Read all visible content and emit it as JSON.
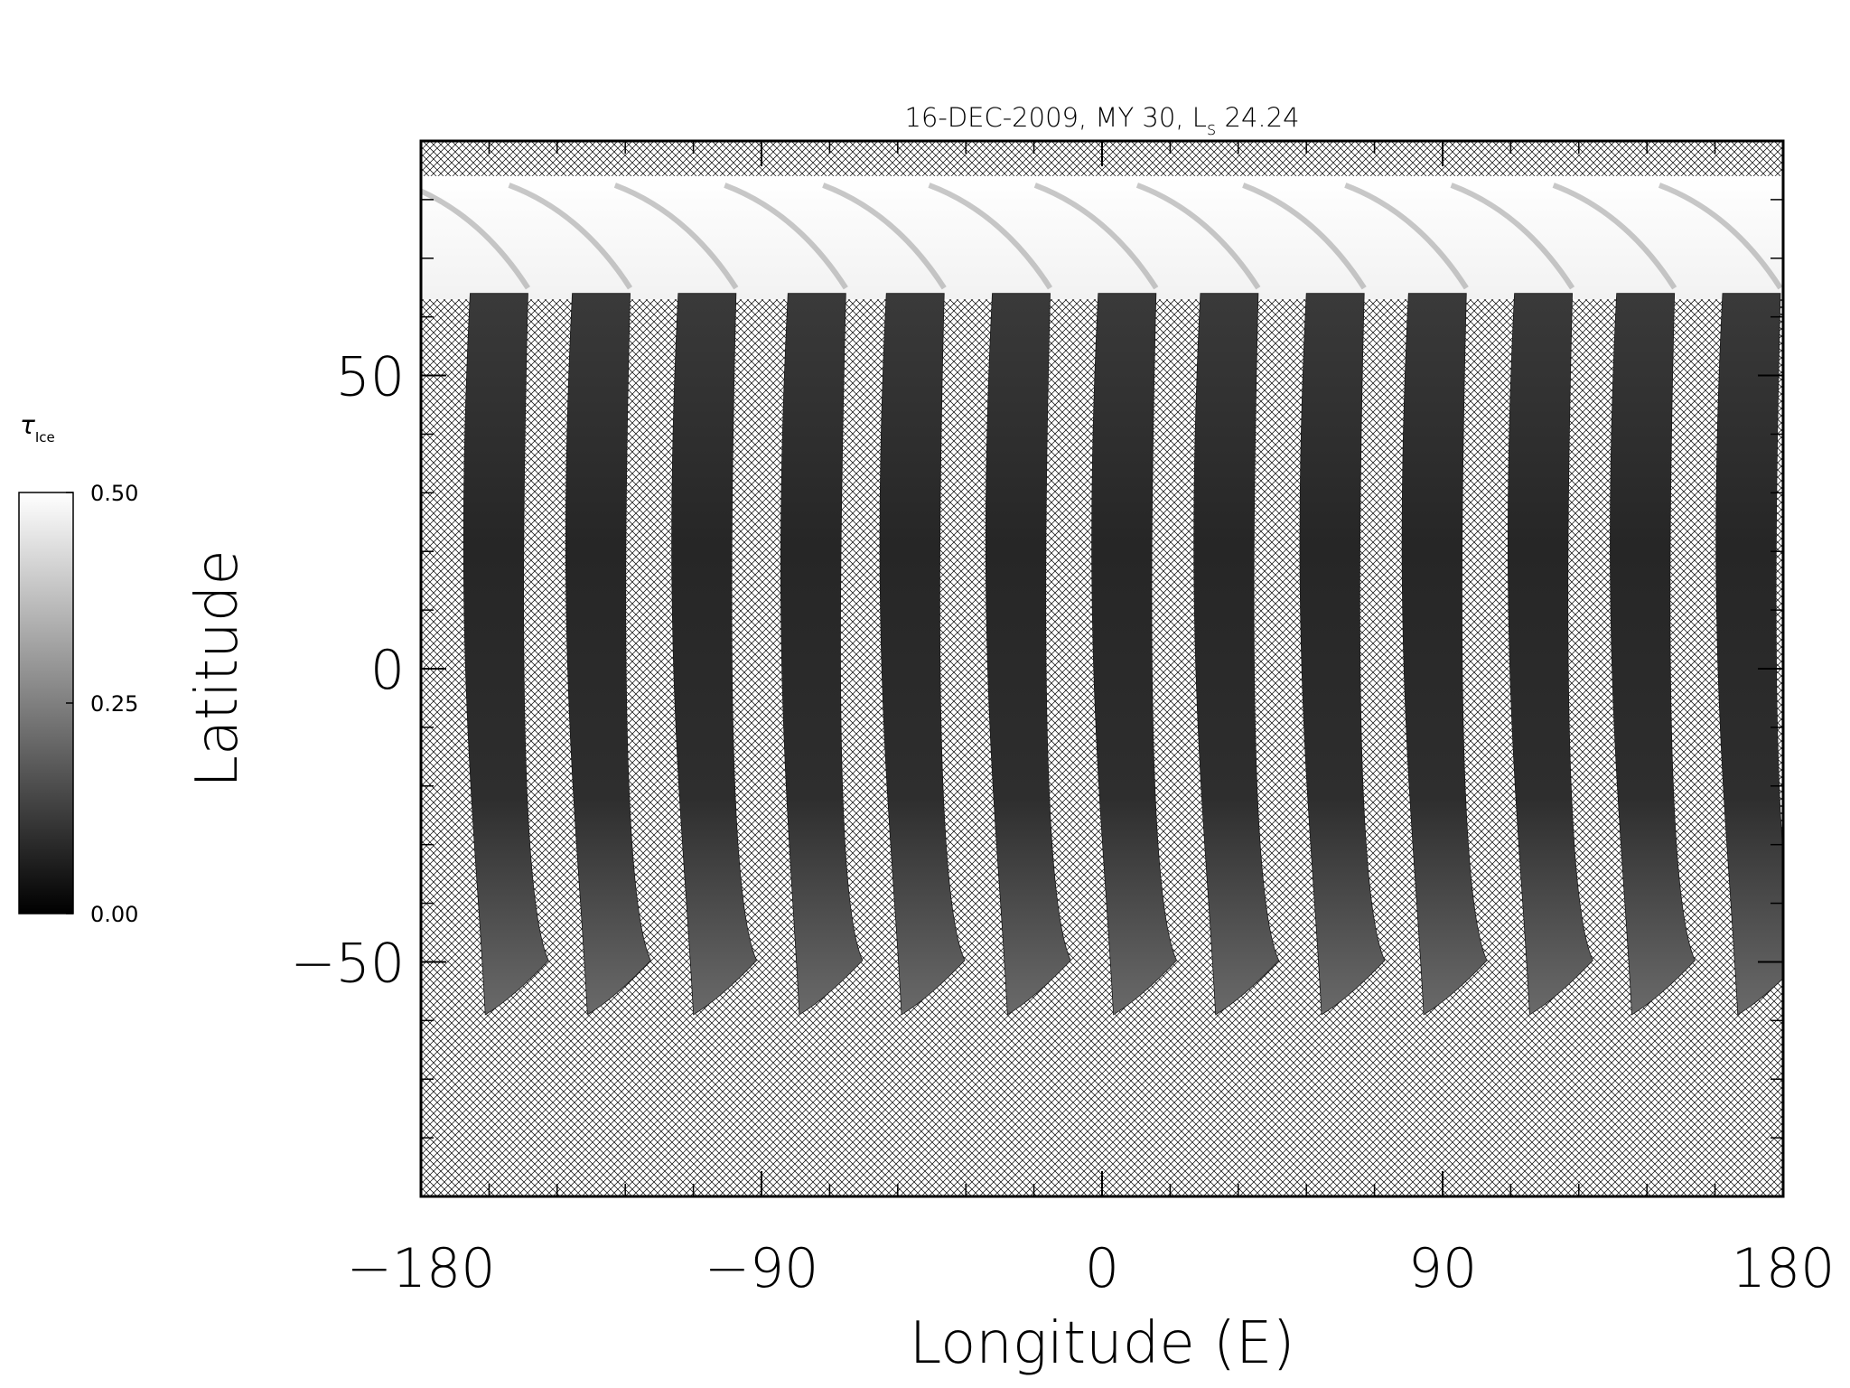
{
  "chart_data": {
    "type": "heatmap",
    "title": "16-DEC-2009, MY 30,  L",
    "title_subscript": "s",
    "title_suffix": " 24.24",
    "xlabel": "Longitude (E)",
    "ylabel": "Latitude",
    "xlim": [
      -180,
      180
    ],
    "ylim": [
      -90,
      90
    ],
    "xticks": [
      -180,
      -90,
      0,
      90,
      180
    ],
    "xtick_labels": [
      "−180",
      "−90",
      "0",
      "90",
      "180"
    ],
    "yticks": [
      -50,
      0,
      50
    ],
    "ytick_labels": [
      "−50",
      "0",
      "50"
    ],
    "minor_xtick_step": 18,
    "minor_ytick_step": 10,
    "missing_data": "crosshatch",
    "polar_cap_edge_lat": 63,
    "cap_top_lat": 84,
    "swath_top_lat": 64,
    "swath_bottom_lat": -59,
    "swath_top_lons": [
      -167,
      -140,
      -112,
      -83,
      -57,
      -29,
      -1,
      26,
      54,
      81,
      109,
      136,
      164
    ],
    "swath_bottom_lons": [
      -163,
      -136,
      -108,
      -80,
      -53,
      -25,
      3,
      30,
      58,
      85,
      113,
      140,
      168
    ],
    "colorbar": {
      "label": "τ",
      "label_subscript": "Ice",
      "min": 0.0,
      "max": 0.5,
      "ticks": [
        0.0,
        0.25,
        0.5
      ],
      "tick_labels": [
        "0.00",
        "0.25",
        "0.50"
      ],
      "colormap": "grayscale"
    },
    "colors": {
      "hatch": "#000000",
      "background": "#ffffff",
      "ice_cap": "#fafafa",
      "swath_dark": "#222222"
    }
  }
}
